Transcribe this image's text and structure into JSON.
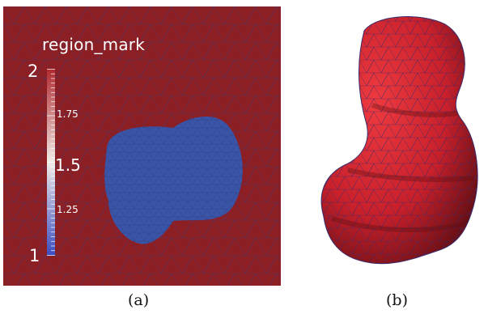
{
  "panel_a": {
    "colorbar": {
      "title": "region_mark",
      "tick_labels": [
        "2",
        "1.75",
        "1.5",
        "1.25",
        "1"
      ],
      "range": [
        1,
        2
      ],
      "colors": {
        "high": "#b02a30",
        "mid": "#f0ece8",
        "low": "#3b4cc0"
      }
    },
    "colors": {
      "outer_region": "#8b1f23",
      "inner_region": "#3a55a8",
      "mesh_edges": "#3b3f8a"
    }
  },
  "panel_b": {
    "colors": {
      "surface": "#c8202b",
      "surface_highlight": "#ee3a3f",
      "surface_shadow": "#6a0f14",
      "mesh_edges": "#3a2a6a"
    }
  },
  "captions": {
    "a": "(a)",
    "b": "(b)"
  }
}
